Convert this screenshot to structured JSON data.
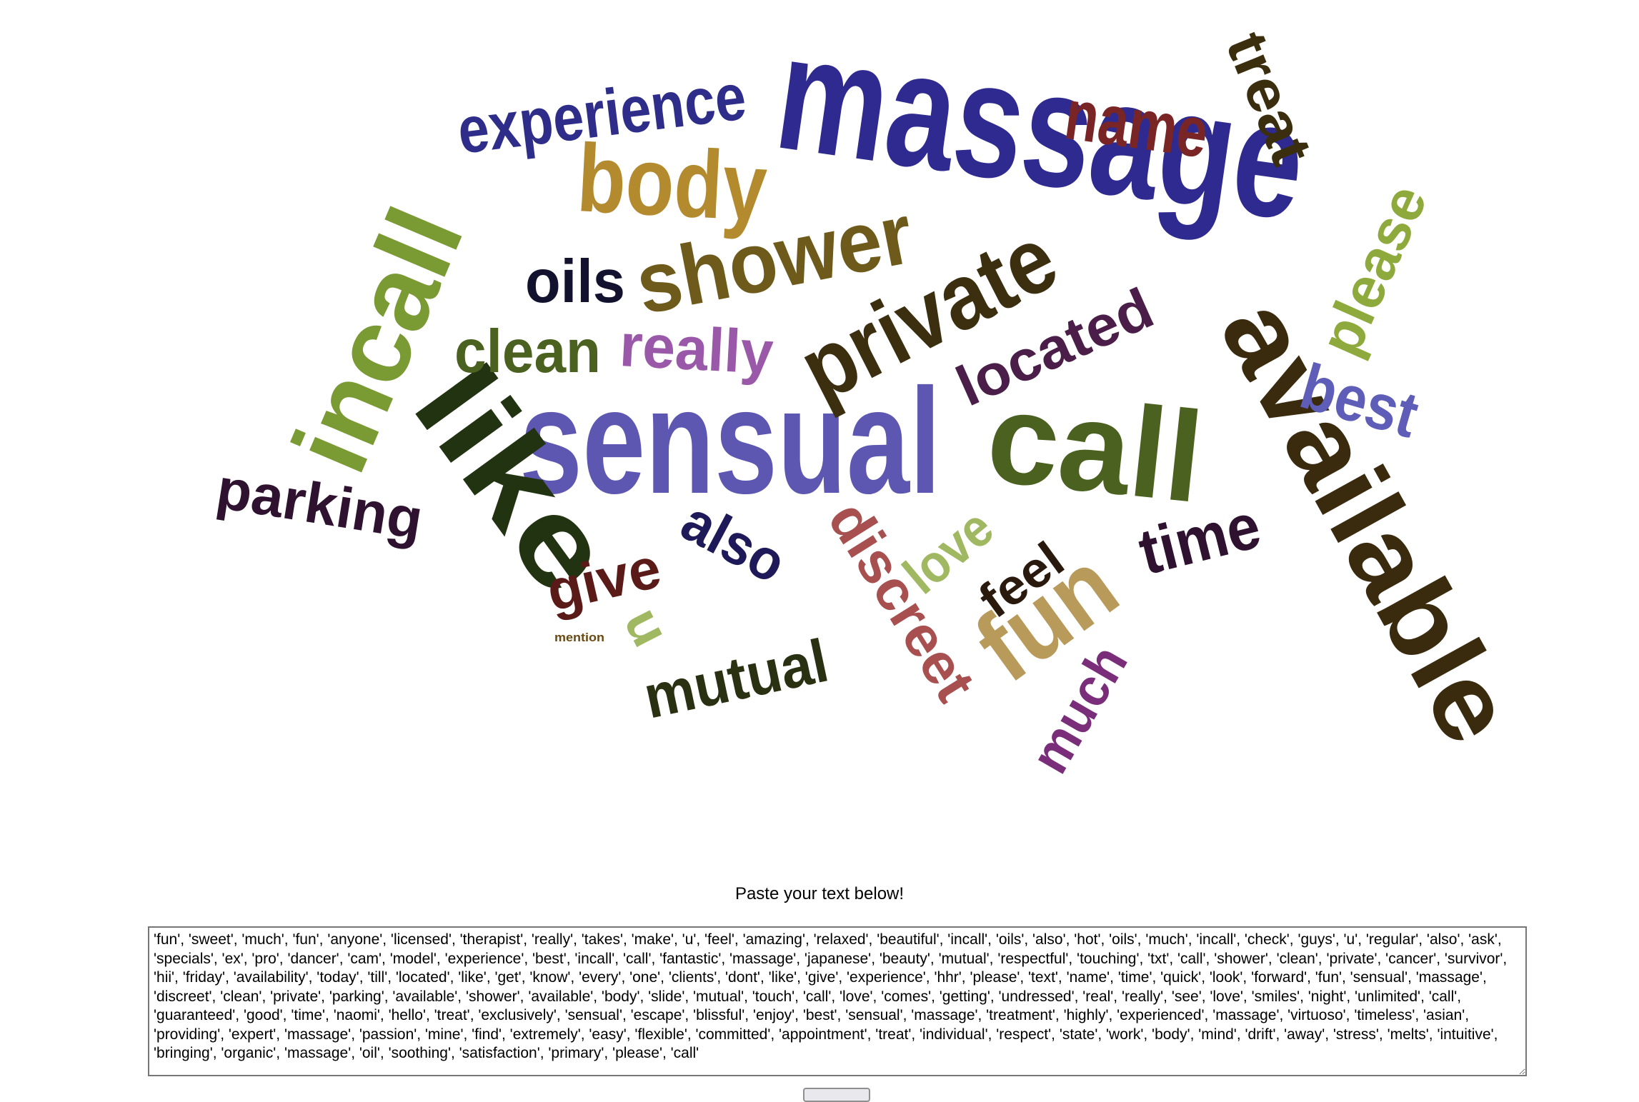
{
  "word_cloud": {
    "words": [
      {
        "text": "massage",
        "color": "#2e2a8f"
      },
      {
        "text": "sensual",
        "color": "#5d57b1"
      },
      {
        "text": "available",
        "color": "#3a2a0e"
      },
      {
        "text": "incall",
        "color": "#7a9a33"
      },
      {
        "text": "like",
        "color": "#223312"
      },
      {
        "text": "call",
        "color": "#4a6120"
      },
      {
        "text": "private",
        "color": "#3b2f10"
      },
      {
        "text": "shower",
        "color": "#6e5a1a"
      },
      {
        "text": "body",
        "color": "#b38a2e"
      },
      {
        "text": "experience",
        "color": "#2e2e8a"
      },
      {
        "text": "name",
        "color": "#7a2525"
      },
      {
        "text": "treat",
        "color": "#3a2e0e"
      },
      {
        "text": "please",
        "color": "#8eaa3c"
      },
      {
        "text": "best",
        "color": "#5e5eb8"
      },
      {
        "text": "located",
        "color": "#4a1e48"
      },
      {
        "text": "oils",
        "color": "#12122e"
      },
      {
        "text": "clean",
        "color": "#4a6120"
      },
      {
        "text": "really",
        "color": "#9a58a8"
      },
      {
        "text": "parking",
        "color": "#2e1230"
      },
      {
        "text": "also",
        "color": "#1e1a5a"
      },
      {
        "text": "give",
        "color": "#5a1a18"
      },
      {
        "text": "discreet",
        "color": "#a85050"
      },
      {
        "text": "love",
        "color": "#a0b862"
      },
      {
        "text": "feel",
        "color": "#2a1a0e"
      },
      {
        "text": "fun",
        "color": "#b89a5a"
      },
      {
        "text": "time",
        "color": "#2e1230"
      },
      {
        "text": "mutual",
        "color": "#2a3012"
      },
      {
        "text": "much",
        "color": "#7a2e7a"
      },
      {
        "text": "u",
        "color": "#a0b862"
      },
      {
        "text": "mention",
        "color": "#6a4a12"
      }
    ]
  },
  "input_section": {
    "prompt": "Paste your text below!",
    "text_value": "'fun', 'sweet', 'much', 'fun', 'anyone', 'licensed', 'therapist', 'really', 'takes', 'make', 'u', 'feel', 'amazing', 'relaxed', 'beautiful', 'incall', 'oils', 'also', 'hot', 'oils', 'much', 'incall', 'check', 'guys', 'u', 'regular', 'also', 'ask', 'specials', 'ex', 'pro', 'dancer', 'cam', 'model', 'experience', 'best', 'incall', 'call', 'fantastic', 'massage', 'japanese', 'beauty', 'mutual', 'respectful', 'touching', 'txt', 'call', 'shower', 'clean', 'private', 'cancer', 'survivor', 'hii', 'friday', 'availability', 'today', 'till', 'located', 'like', 'get', 'know', 'every', 'one', 'clients', 'dont', 'like', 'give', 'experience', 'hhr', 'please', 'text', 'name', 'time', 'quick', 'look', 'forward', 'fun', 'sensual', 'massage', 'discreet', 'clean', 'private', 'parking', 'available', 'shower', 'available', 'body', 'slide', 'mutual', 'touch', 'call', 'love', 'comes', 'getting', 'undressed', 'real', 'really', 'see', 'love', 'smiles', 'night', 'unlimited', 'call', 'guaranteed', 'good', 'time', 'naomi', 'hello', 'treat', 'exclusively', 'sensual', 'escape', 'blissful', 'enjoy', 'best', 'sensual', 'massage', 'treatment', 'highly', 'experienced', 'massage', 'virtuoso', 'timeless', 'asian', 'providing', 'expert', 'massage', 'passion', 'mine', 'find', 'extremely', 'easy', 'flexible', 'committed', 'appointment', 'treat', 'individual', 'respect', 'state', 'work', 'body', 'mind', 'drift', 'away', 'stress', 'melts', 'intuitive', 'bringing', 'organic', 'massage', 'oil', 'soothing', 'satisfaction', 'primary', 'please', 'call'"
  }
}
